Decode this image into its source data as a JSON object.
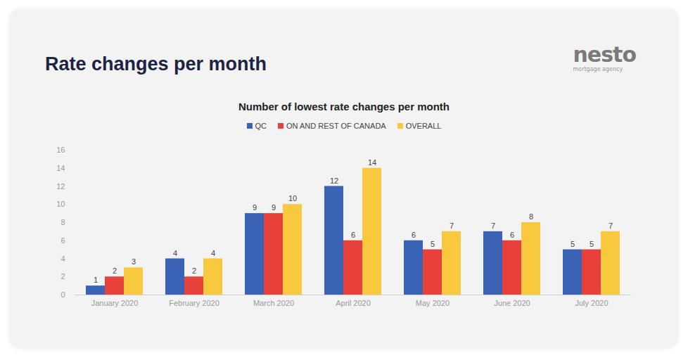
{
  "page": {
    "title": "Rate changes per month",
    "logo": "nesto",
    "logo_subtitle": "mortgage agency"
  },
  "chart_data": {
    "type": "bar",
    "title": "Number of lowest rate changes per month",
    "categories": [
      "January 2020",
      "February 2020",
      "March 2020",
      "April 2020",
      "May 2020",
      "June 2020",
      "July 2020"
    ],
    "series": [
      {
        "name": "QC",
        "color": "#3a62b5",
        "values": [
          1,
          4,
          9,
          12,
          6,
          7,
          5
        ]
      },
      {
        "name": "ON AND REST OF CANADA",
        "color": "#e8403a",
        "values": [
          2,
          2,
          9,
          6,
          5,
          6,
          5
        ]
      },
      {
        "name": "OVERALL",
        "color": "#f8c93f",
        "values": [
          3,
          4,
          10,
          14,
          7,
          8,
          7
        ]
      }
    ],
    "ylim": [
      0,
      16
    ],
    "yticks": [
      0,
      2,
      4,
      6,
      8,
      10,
      12,
      14,
      16
    ],
    "grid": false,
    "legend": "top",
    "data_labels": true
  }
}
